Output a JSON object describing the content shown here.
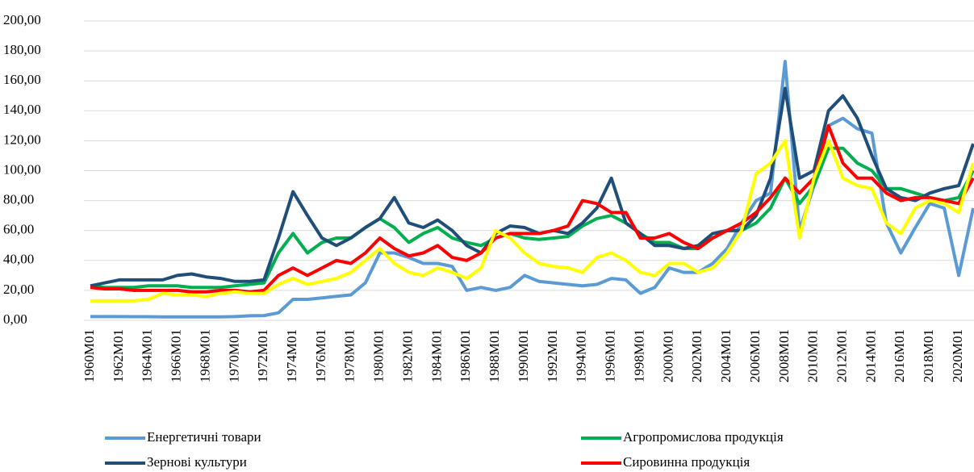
{
  "chart_data": {
    "type": "line",
    "categories": [
      "1960M01",
      null,
      "1962M01",
      null,
      "1964M01",
      null,
      "1966M01",
      null,
      "1968M01",
      null,
      "1970M01",
      null,
      "1972M01",
      null,
      "1974M01",
      null,
      "1976M01",
      null,
      "1978M01",
      null,
      "1980M01",
      null,
      "1982M01",
      null,
      "1984M01",
      null,
      "1986M01",
      null,
      "1988M01",
      null,
      "1990M01",
      null,
      "1992M01",
      null,
      "1994M01",
      null,
      "1996M01",
      null,
      "1998M01",
      null,
      "2000M01",
      null,
      "2002M01",
      null,
      "2004M01",
      null,
      "2006M01",
      null,
      "2008M01",
      null,
      "2010M01",
      null,
      "2012M01",
      null,
      "2014M01",
      null,
      "2016M01",
      null,
      "2018M01",
      null,
      "2020M01",
      null
    ],
    "series": [
      {
        "name": "Енергетичні товари",
        "color": "#5b9bd5",
        "values": [
          2.5,
          2.5,
          2.5,
          2.4,
          2.4,
          2.3,
          2.3,
          2.3,
          2.3,
          2.3,
          2.5,
          3,
          3.2,
          5,
          14,
          14,
          15,
          16,
          17,
          25,
          45,
          45,
          42,
          38,
          38,
          36,
          20,
          22,
          20,
          22,
          30,
          26,
          25,
          24,
          23,
          24,
          28,
          27,
          18,
          22,
          35,
          32,
          32,
          38,
          48,
          65,
          80,
          85,
          173,
          60,
          90,
          130,
          135,
          128,
          125,
          65,
          45,
          62,
          78,
          75,
          30,
          75
        ]
      },
      {
        "name": "Агропромислова продукція",
        "color": "#00b050",
        "values": [
          23,
          22,
          22,
          22,
          23,
          23,
          23,
          22,
          22,
          22,
          23,
          24,
          25,
          45,
          58,
          45,
          52,
          55,
          55,
          62,
          68,
          62,
          52,
          58,
          62,
          55,
          52,
          50,
          55,
          58,
          55,
          54,
          55,
          56,
          63,
          68,
          70,
          65,
          58,
          52,
          52,
          48,
          48,
          55,
          60,
          60,
          65,
          75,
          95,
          78,
          90,
          115,
          115,
          105,
          100,
          88,
          88,
          85,
          82,
          80,
          82,
          100
        ]
      },
      {
        "name": "Зернові культури",
        "color": "#1f4e79",
        "values": [
          23,
          25,
          27,
          27,
          27,
          27,
          30,
          31,
          29,
          28,
          26,
          26,
          27,
          55,
          86,
          70,
          55,
          50,
          55,
          62,
          68,
          82,
          65,
          62,
          67,
          60,
          50,
          45,
          58,
          63,
          62,
          58,
          60,
          58,
          65,
          75,
          95,
          65,
          58,
          50,
          50,
          48,
          50,
          58,
          60,
          60,
          70,
          95,
          155,
          95,
          100,
          140,
          150,
          135,
          110,
          88,
          82,
          80,
          85,
          88,
          90,
          118
        ]
      },
      {
        "name": "Сировинна продукція",
        "color": "#ff0000",
        "values": [
          22,
          21,
          21,
          20,
          20,
          20,
          20,
          19,
          19,
          20,
          20,
          19,
          20,
          30,
          35,
          30,
          35,
          40,
          38,
          45,
          55,
          48,
          43,
          45,
          50,
          42,
          40,
          45,
          55,
          58,
          58,
          58,
          60,
          63,
          80,
          78,
          72,
          72,
          55,
          55,
          58,
          52,
          48,
          55,
          60,
          65,
          72,
          82,
          95,
          85,
          95,
          130,
          105,
          95,
          95,
          85,
          80,
          82,
          82,
          80,
          78,
          95
        ]
      },
      {
        "color": "#ffff00",
        "values": [
          13,
          13,
          13,
          13,
          14,
          18,
          17,
          17,
          16,
          18,
          19,
          18,
          18,
          24,
          28,
          24,
          26,
          28,
          32,
          40,
          48,
          38,
          32,
          30,
          35,
          32,
          28,
          35,
          60,
          55,
          45,
          38,
          36,
          35,
          32,
          42,
          45,
          40,
          32,
          30,
          38,
          38,
          32,
          35,
          45,
          60,
          98,
          105,
          120,
          55,
          95,
          120,
          95,
          90,
          88,
          65,
          58,
          75,
          80,
          78,
          72,
          105
        ]
      }
    ],
    "ylim": [
      0,
      200
    ],
    "yticks": [
      {
        "value": 0,
        "label": "0,00"
      },
      {
        "value": 20,
        "label": "20,00"
      },
      {
        "value": 40,
        "label": "40,00"
      },
      {
        "value": 60,
        "label": "60,00"
      },
      {
        "value": 80,
        "label": "80,00"
      },
      {
        "value": 100,
        "label": "100,00"
      },
      {
        "value": 120,
        "label": "120,00"
      },
      {
        "value": 140,
        "label": "140,00"
      },
      {
        "value": 160,
        "label": "160,00"
      },
      {
        "value": 180,
        "label": "180,00"
      },
      {
        "value": 200,
        "label": "200,00"
      }
    ],
    "grid": true,
    "legend": "bottom"
  }
}
